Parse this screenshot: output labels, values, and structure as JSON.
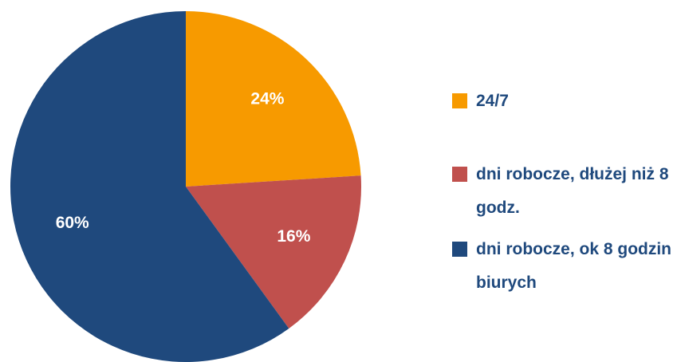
{
  "chart_data": {
    "type": "pie",
    "categories": [
      "24/7",
      "dni robocze, dłużej niż 8 godz.",
      "dni robocze, ok 8 godzin biurych"
    ],
    "values": [
      24,
      16,
      60
    ],
    "value_labels": [
      "24%",
      "16%",
      "60%"
    ],
    "colors": [
      "#f79a00",
      "#c0504d",
      "#1f497d"
    ],
    "legend": "right"
  }
}
